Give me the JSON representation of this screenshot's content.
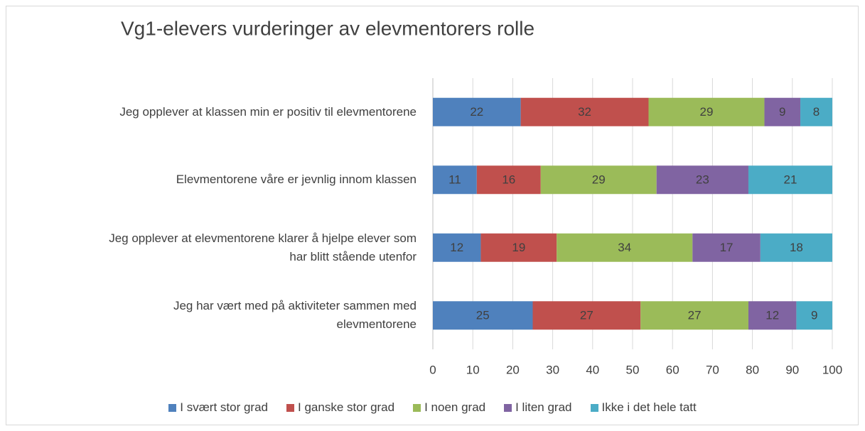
{
  "chart_data": {
    "type": "stacked_barh",
    "title": "Vg1-elevers vurderinger av elevmentorers rolle",
    "categories": [
      "Jeg opplever at klassen min er positiv til elevmentorene",
      "Elevmentorene våre er jevnlig innom klassen",
      "Jeg opplever at elevmentorene klarer å hjelpe elever som\nhar blitt stående utenfor",
      "Jeg har vært med på aktiviteter sammen med\nelevmentorene"
    ],
    "series": [
      {
        "name": "I svært stor grad",
        "color": "#4f81bd",
        "values": [
          22,
          11,
          12,
          25
        ]
      },
      {
        "name": "I ganske stor grad",
        "color": "#c0504d",
        "values": [
          32,
          16,
          19,
          27
        ]
      },
      {
        "name": "I noen grad",
        "color": "#9bbb59",
        "values": [
          29,
          29,
          34,
          27
        ]
      },
      {
        "name": "I liten grad",
        "color": "#8064a2",
        "values": [
          9,
          23,
          17,
          12
        ]
      },
      {
        "name": "Ikke i det hele tatt",
        "color": "#4bacc6",
        "values": [
          8,
          21,
          18,
          9
        ]
      }
    ],
    "xlim": [
      0,
      100
    ],
    "xticks": [
      0,
      10,
      20,
      30,
      40,
      50,
      60,
      70,
      80,
      90,
      100
    ],
    "grid": true,
    "legend": "bottom"
  }
}
